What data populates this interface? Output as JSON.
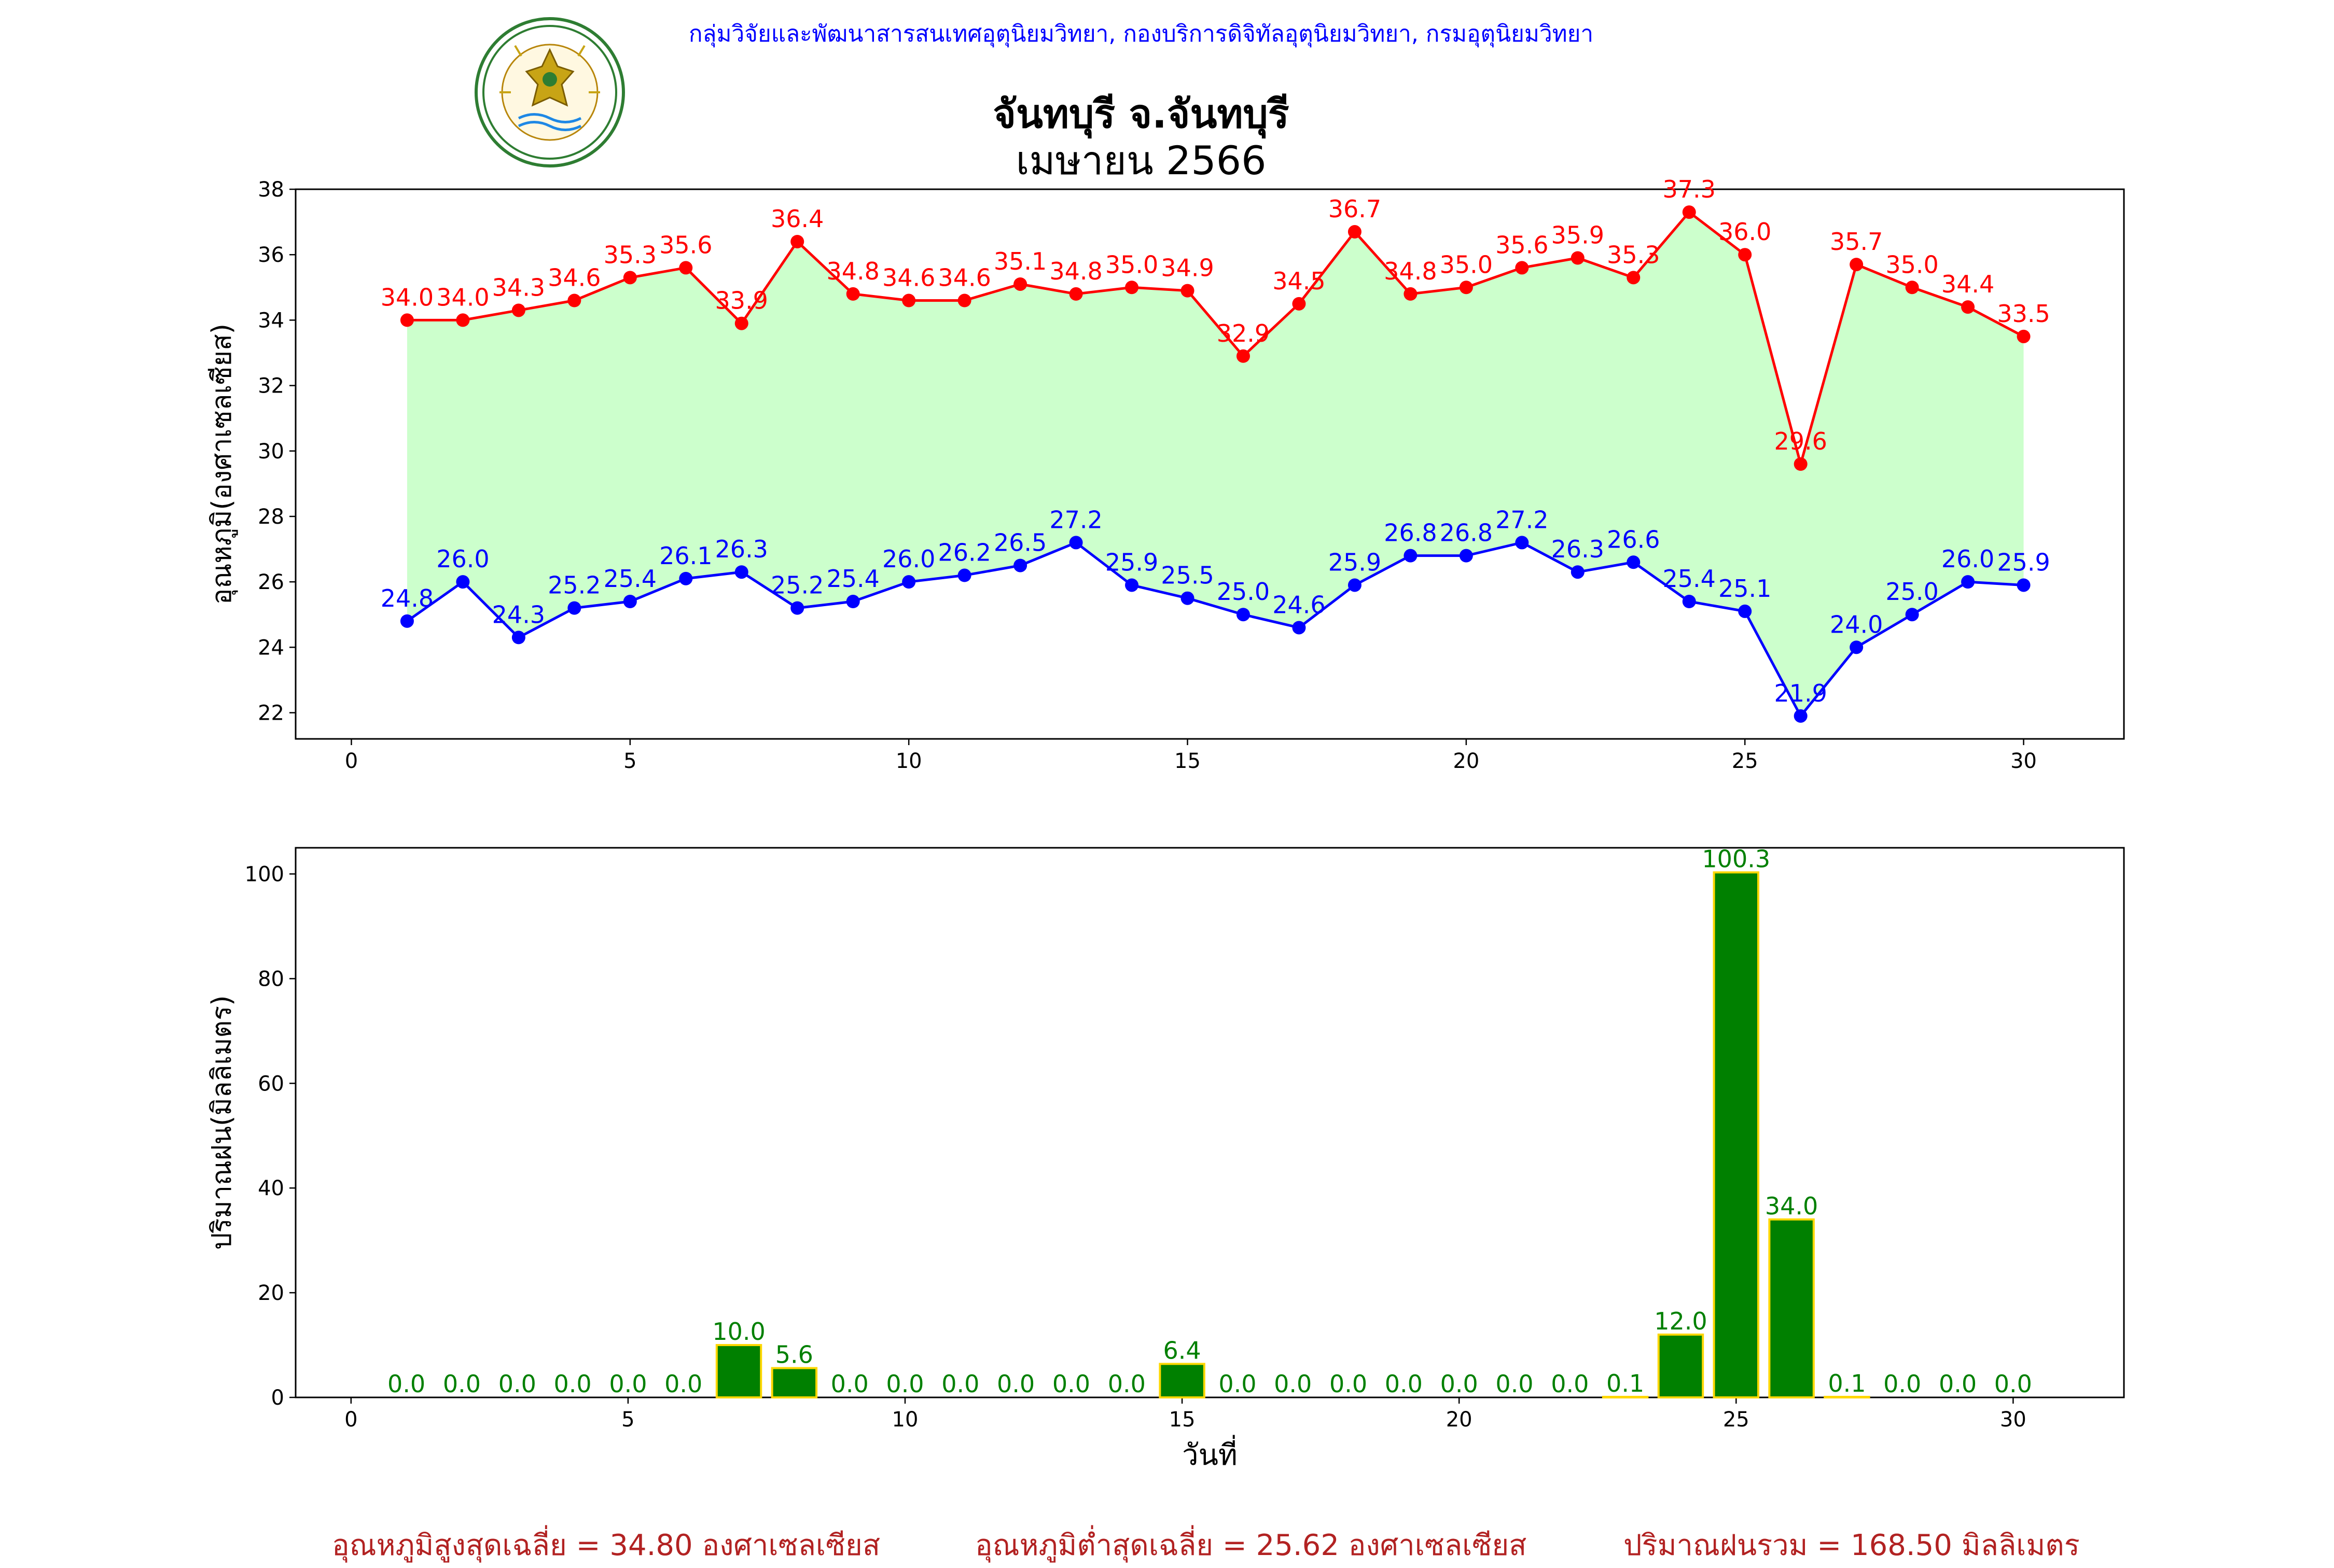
{
  "header": {
    "organization": "กลุ่มวิจัยและพัฒนาสารสนเทศอุตุนิยมวิทยา, กองบริการดิจิทัลอุตุนิยมวิทยา, กรมอุตุนิยมวิทยา",
    "logo_text_top": "กรมอุตุนิยมวิทยา",
    "logo_text_bottom": "METEOROLOGICAL DEPARTMENT"
  },
  "title": {
    "station": "จันทบุรี จ.จันทบุรี",
    "period": "เมษายน 2566"
  },
  "footer": {
    "avg_max": "อุณหภูมิสูงสุดเฉลี่ย = 34.80 องศาเซลเซียส",
    "avg_min": "อุณหภูมิต่ำสุดเฉลี่ย = 25.62 องศาเซลเซียส",
    "total_rain": "ปริมาณฝนรวม = 168.50 มิลลิเมตร"
  },
  "colors": {
    "max_line": "#ff0000",
    "min_line": "#0000ff",
    "fill": "#ccffcc",
    "bar_fill": "#008000",
    "bar_edge": "#ffd700",
    "bar_label": "#008000",
    "footer_text": "#b22222",
    "header_text": "#0000ff"
  },
  "chart_data": [
    {
      "type": "line",
      "ylabel": "อุณหภูมิ(องศาเซลเซียส)",
      "xlabel": "",
      "xlim": [
        -1,
        31.8
      ],
      "ylim": [
        21.2,
        38
      ],
      "xticks": [
        0,
        5,
        10,
        15,
        20,
        25,
        30
      ],
      "yticks": [
        22,
        24,
        26,
        28,
        30,
        32,
        34,
        36,
        38
      ],
      "x": [
        1,
        2,
        3,
        4,
        5,
        6,
        7,
        8,
        9,
        10,
        11,
        12,
        13,
        14,
        15,
        16,
        17,
        18,
        19,
        20,
        21,
        22,
        23,
        24,
        25,
        26,
        27,
        28,
        29,
        30
      ],
      "series": [
        {
          "key": "max",
          "values": [
            34.0,
            34.0,
            34.3,
            34.6,
            35.3,
            35.6,
            33.9,
            36.4,
            34.8,
            34.6,
            34.6,
            35.1,
            34.8,
            35.0,
            34.9,
            32.9,
            34.5,
            36.7,
            34.8,
            35.0,
            35.6,
            35.9,
            35.3,
            37.3,
            36.0,
            29.6,
            35.7,
            35.0,
            34.4,
            33.5
          ]
        },
        {
          "key": "min",
          "values": [
            24.8,
            26.0,
            24.3,
            25.2,
            25.4,
            26.1,
            26.3,
            25.2,
            25.4,
            26.0,
            26.2,
            26.5,
            27.2,
            25.9,
            25.5,
            25.0,
            24.6,
            25.9,
            26.8,
            26.8,
            27.2,
            26.3,
            26.6,
            25.4,
            25.1,
            21.9,
            24.0,
            25.0,
            26.0,
            25.9
          ]
        }
      ]
    },
    {
      "type": "bar",
      "ylabel": "ปริมาณฝน(มิลลิเมตร)",
      "xlabel": "วันที่",
      "xlim": [
        -1,
        32
      ],
      "ylim": [
        0,
        105
      ],
      "xticks": [
        0,
        5,
        10,
        15,
        20,
        25,
        30
      ],
      "yticks": [
        0,
        20,
        40,
        60,
        80,
        100
      ],
      "categories": [
        1,
        2,
        3,
        4,
        5,
        6,
        7,
        8,
        9,
        10,
        11,
        12,
        13,
        14,
        15,
        16,
        17,
        18,
        19,
        20,
        21,
        22,
        23,
        24,
        25,
        26,
        27,
        28,
        29,
        30
      ],
      "values": [
        0.0,
        0.0,
        0.0,
        0.0,
        0.0,
        0.0,
        10.0,
        5.6,
        0.0,
        0.0,
        0.0,
        0.0,
        0.0,
        0.0,
        6.4,
        0.0,
        0.0,
        0.0,
        0.0,
        0.0,
        0.0,
        0.0,
        0.1,
        12.0,
        100.3,
        34.0,
        0.1,
        0.0,
        0.0,
        0.0
      ]
    }
  ]
}
